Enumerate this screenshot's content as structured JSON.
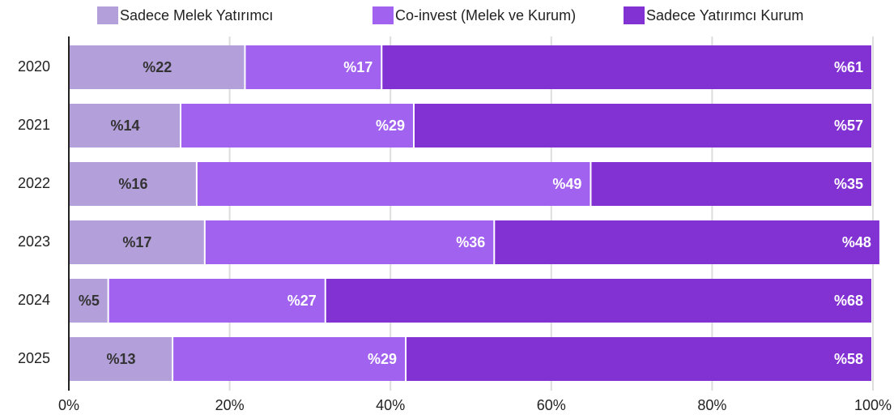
{
  "chart_data": {
    "type": "stacked_barh",
    "categories": [
      "2020",
      "2021",
      "2022",
      "2023",
      "2024",
      "2025"
    ],
    "series": [
      {
        "name": "Sadece Melek Yatırımcı",
        "color": "#b39fd9",
        "values": [
          22,
          14,
          16,
          17,
          5,
          13
        ],
        "value_labels": [
          "%22",
          "%14",
          "%16",
          "%17",
          "%5",
          "%13"
        ]
      },
      {
        "name": "Co-invest (Melek ve Kurum)",
        "color": "#a162f0",
        "values": [
          17,
          29,
          49,
          36,
          27,
          29
        ],
        "value_labels": [
          "%17",
          "%29",
          "%49",
          "%36",
          "%27",
          "%29"
        ]
      },
      {
        "name": "Sadece Yatırımcı Kurum",
        "color": "#8231d3",
        "values": [
          61,
          57,
          35,
          48,
          68,
          58
        ],
        "value_labels": [
          "%61",
          "%57",
          "%35",
          "%48",
          "%68",
          "%58"
        ]
      }
    ],
    "xlim": [
      0,
      100
    ],
    "xticks": [
      {
        "value": 0,
        "label": "0%"
      },
      {
        "value": 20,
        "label": "20%"
      },
      {
        "value": 40,
        "label": "40%"
      },
      {
        "value": 60,
        "label": "60%"
      },
      {
        "value": 80,
        "label": "80%"
      },
      {
        "value": 100,
        "label": "100%"
      }
    ],
    "grid": true,
    "legend": "top"
  }
}
